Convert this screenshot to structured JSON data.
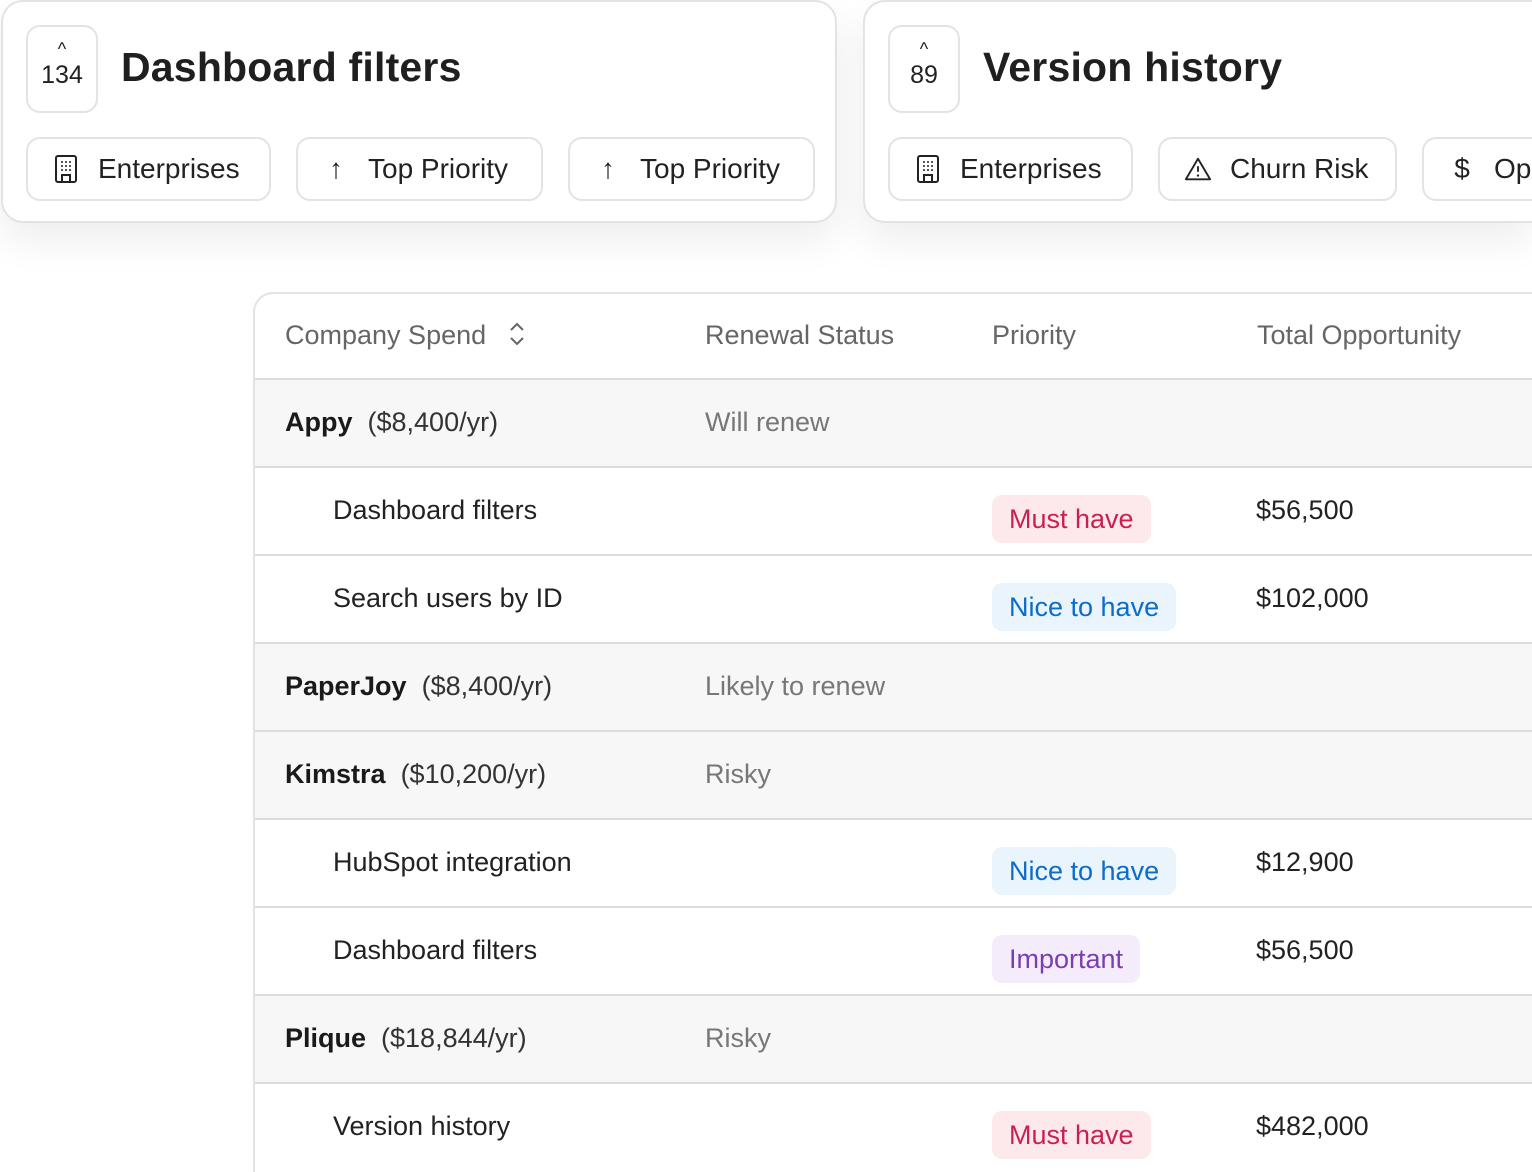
{
  "cards": [
    {
      "votes": "134",
      "title": "Dashboard filters",
      "chips": [
        {
          "icon": "building-icon",
          "label": "Enterprises"
        },
        {
          "icon": "arrow-up-icon",
          "label": "Top Priority"
        },
        {
          "icon": "arrow-up-icon",
          "label": "Top Priority"
        }
      ]
    },
    {
      "votes": "89",
      "title": "Version history",
      "chips": [
        {
          "icon": "building-icon",
          "label": "Enterprises"
        },
        {
          "icon": "warning-icon",
          "label": "Churn Risk"
        },
        {
          "icon": "dollar-icon",
          "label": "Op"
        }
      ]
    }
  ],
  "table": {
    "headers": [
      "Company Spend",
      "Renewal Status",
      "Priority",
      "Total Opportunity"
    ],
    "rows": [
      {
        "type": "group",
        "company": "Appy",
        "spend": "($8,400/yr)",
        "status": "Will renew"
      },
      {
        "type": "item",
        "feature": "Dashboard filters",
        "priority": "Must have",
        "opportunity": "$56,500"
      },
      {
        "type": "item",
        "feature": "Search users by ID",
        "priority": "Nice to have",
        "opportunity": "$102,000"
      },
      {
        "type": "group",
        "company": "PaperJoy",
        "spend": "($8,400/yr)",
        "status": "Likely to renew"
      },
      {
        "type": "group",
        "company": "Kimstra",
        "spend": "($10,200/yr)",
        "status": "Risky"
      },
      {
        "type": "item",
        "feature": "HubSpot integration",
        "priority": "Nice to have",
        "opportunity": "$12,900"
      },
      {
        "type": "item",
        "feature": "Dashboard filters",
        "priority": "Important",
        "opportunity": "$56,500"
      },
      {
        "type": "group",
        "company": "Plique",
        "spend": "($18,844/yr)",
        "status": "Risky"
      },
      {
        "type": "item",
        "feature": "Version history",
        "priority": "Must have",
        "opportunity": "$482,000"
      }
    ]
  },
  "priority_colors": {
    "Must have": {
      "text": "#c9204f",
      "bg": "#fde8ec"
    },
    "Nice to have": {
      "text": "#0b6ccc",
      "bg": "#e9f4fd"
    },
    "Important": {
      "text": "#7a3db3",
      "bg": "#f5ecfb"
    }
  }
}
